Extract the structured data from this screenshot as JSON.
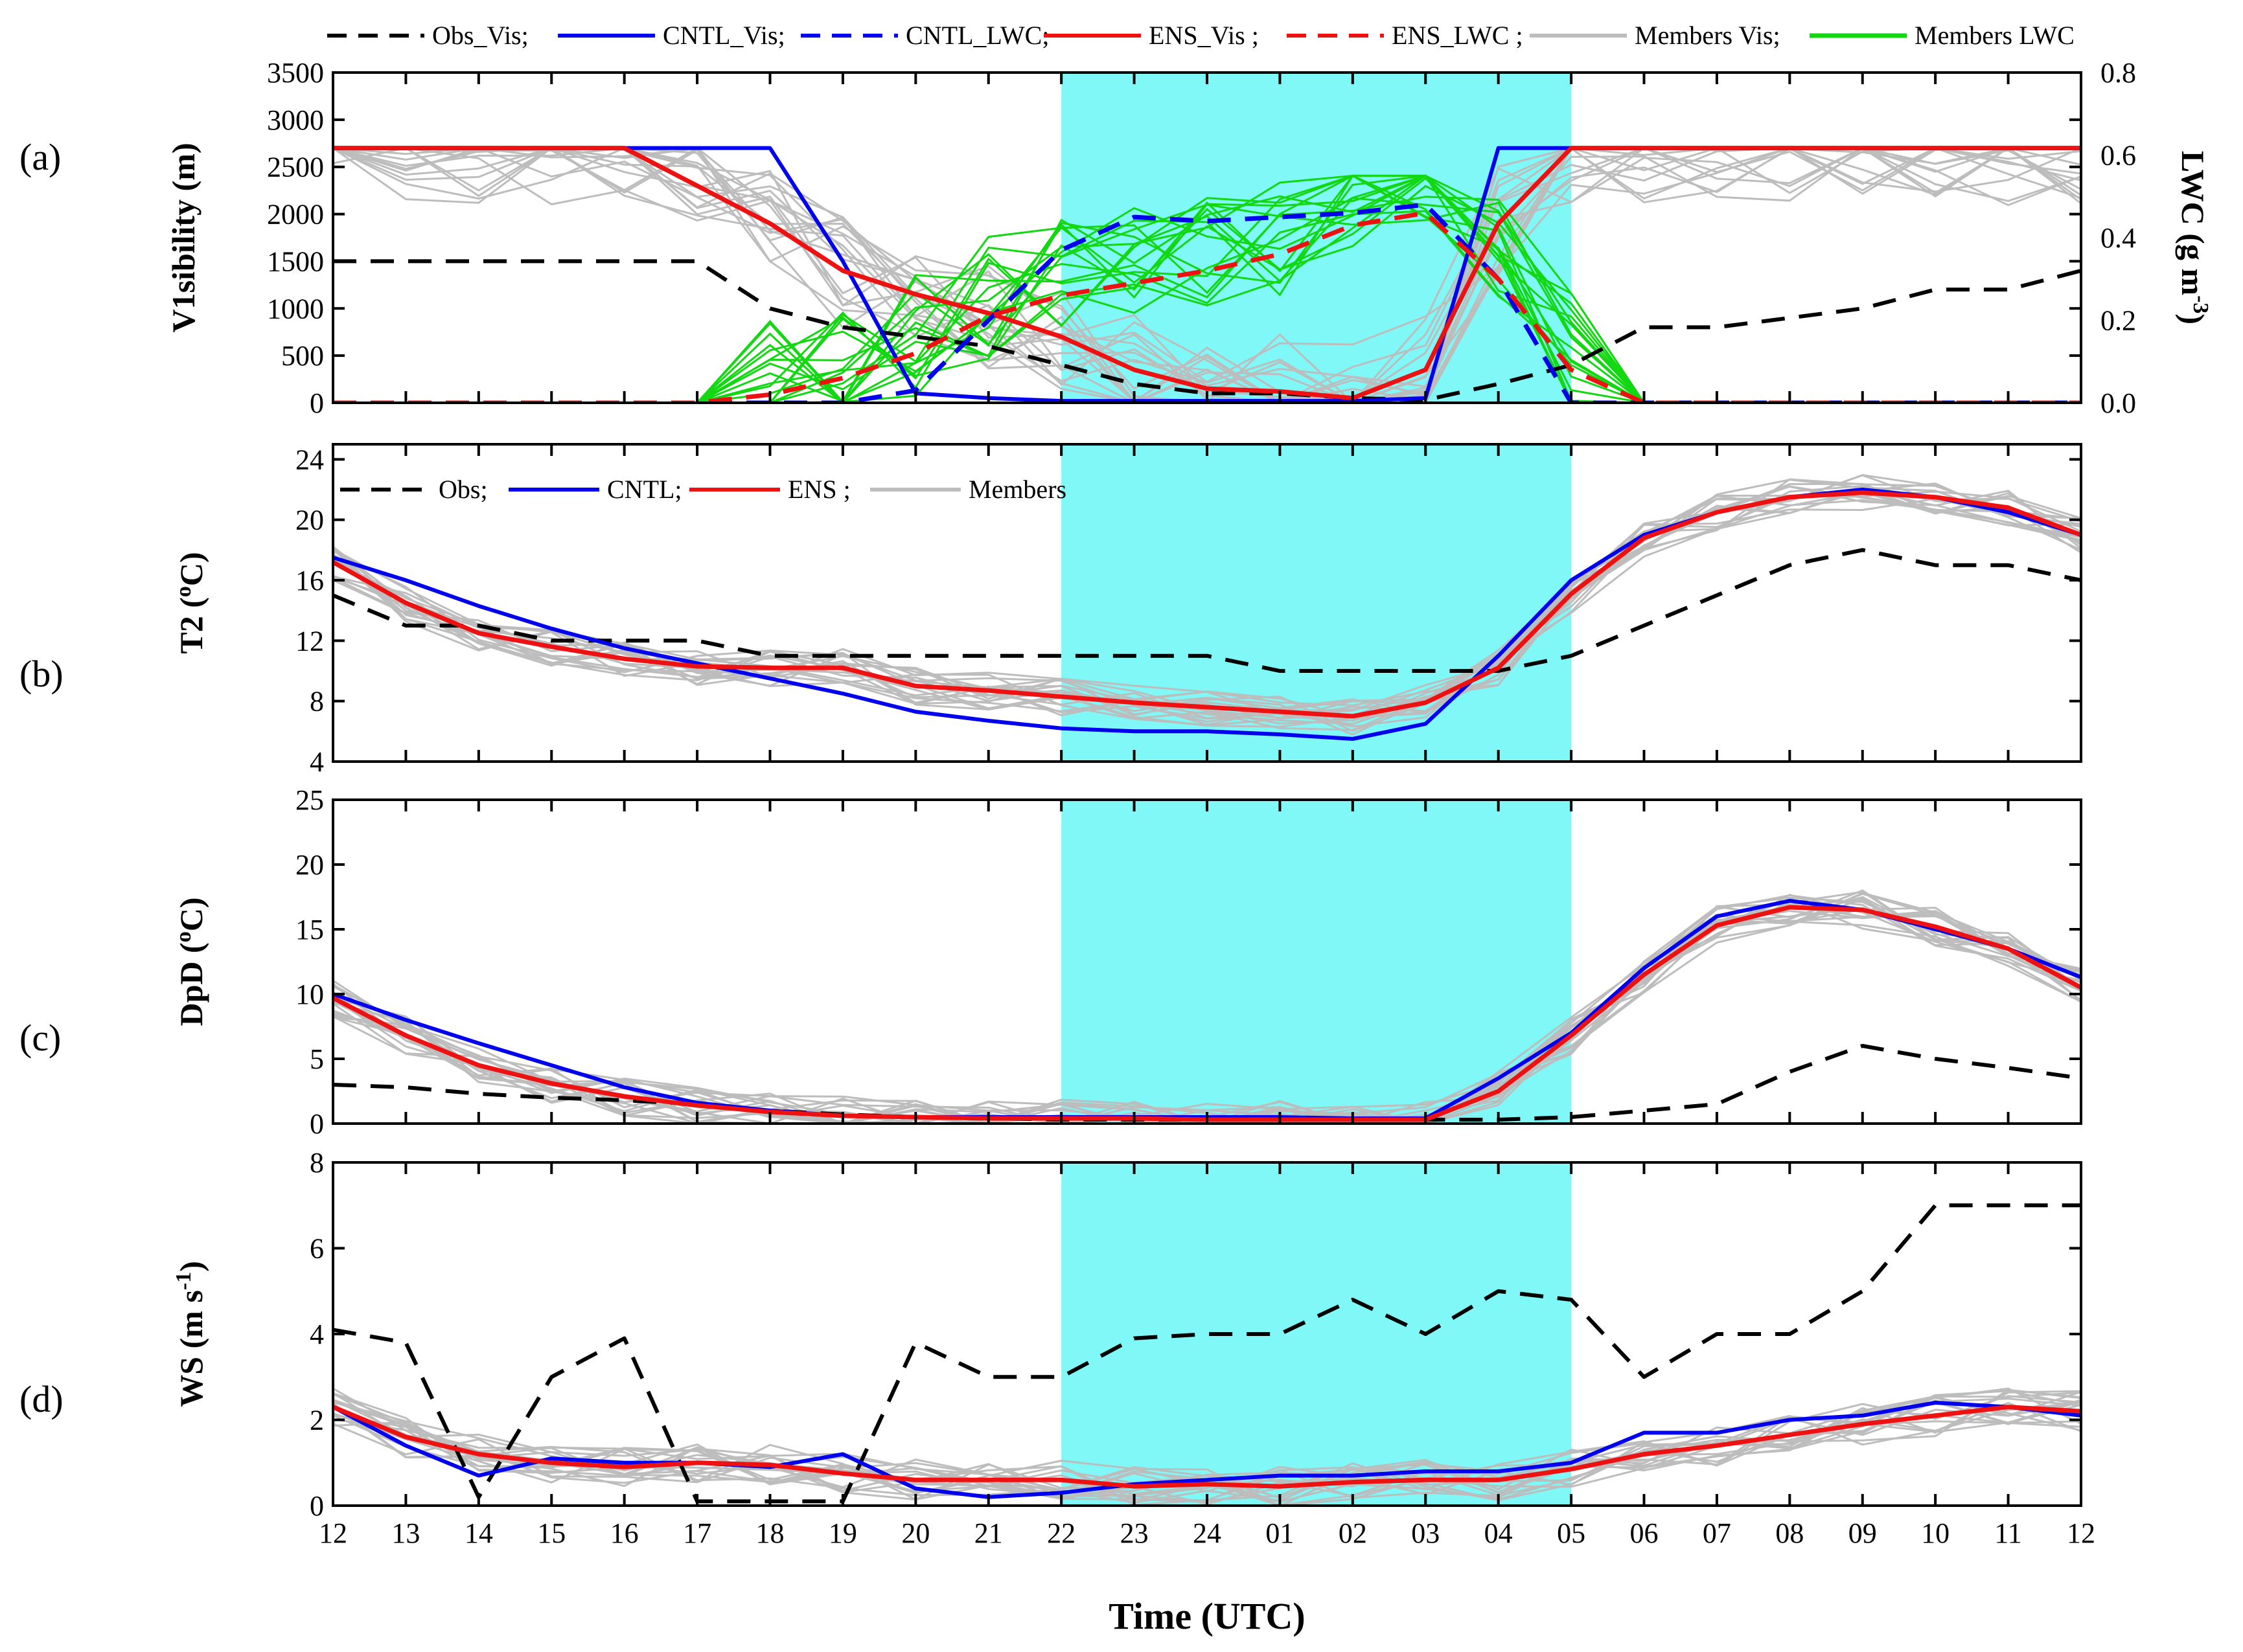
{
  "colors": {
    "highlight": "#80f8f8",
    "obs": "#000000",
    "cntl": "#0000ee",
    "ens": "#ee1111",
    "members": "#bdbdbd",
    "members_lwc": "#12d812"
  },
  "x_axis": {
    "title": "Time (UTC)",
    "ticks": [
      "12",
      "13",
      "14",
      "15",
      "16",
      "17",
      "18",
      "19",
      "20",
      "21",
      "22",
      "23",
      "24",
      "01",
      "02",
      "03",
      "04",
      "05",
      "06",
      "07",
      "08",
      "09",
      "10",
      "11",
      "12"
    ]
  },
  "highlight_band": {
    "x_start": 10,
    "x_end": 17
  },
  "legend_top": {
    "items": [
      {
        "label": "Obs_Vis;",
        "series": "obs",
        "style": "dashed"
      },
      {
        "label": "CNTL_Vis;",
        "series": "cntl",
        "style": "solid"
      },
      {
        "label": "CNTL_LWC;",
        "series": "cntl",
        "style": "dashed"
      },
      {
        "label": "ENS_Vis ;",
        "series": "ens",
        "style": "solid"
      },
      {
        "label": "ENS_LWC ;",
        "series": "ens",
        "style": "dashed"
      },
      {
        "label": "Members Vis;",
        "series": "members",
        "style": "solid"
      },
      {
        "label": "Members LWC",
        "series": "members_lwc",
        "style": "solid"
      }
    ]
  },
  "legend_b": {
    "items": [
      {
        "label": "Obs;",
        "series": "obs",
        "style": "dashed"
      },
      {
        "label": "CNTL;",
        "series": "cntl",
        "style": "solid"
      },
      {
        "label": "ENS ;",
        "series": "ens",
        "style": "solid"
      },
      {
        "label": "Members",
        "series": "members",
        "style": "solid"
      }
    ]
  },
  "chart_data": [
    {
      "type": "line",
      "panel_label": "(a)",
      "ylabel": "V1sibility (m)",
      "ylim": [
        0,
        3500
      ],
      "yticks": [
        "0",
        "500",
        "1000",
        "1500",
        "2000",
        "2500",
        "3000",
        "3500"
      ],
      "y2label": "LWC (g m-3)",
      "y2lim": [
        0,
        0.8
      ],
      "y2ticks": [
        "0.0",
        "0.2",
        "0.4",
        "0.6",
        "0.8"
      ],
      "series": [
        {
          "name": "Obs_Vis",
          "axis": "left",
          "values": [
            1500,
            1500,
            1500,
            1500,
            1500,
            1500,
            1000,
            800,
            700,
            600,
            400,
            200,
            100,
            100,
            50,
            30,
            200,
            400,
            800,
            800,
            900,
            1000,
            1200,
            1200,
            1400
          ]
        },
        {
          "name": "CNTL_Vis",
          "axis": "left",
          "values": [
            2700,
            2700,
            2700,
            2700,
            2700,
            2700,
            2700,
            1500,
            100,
            50,
            20,
            20,
            20,
            20,
            20,
            50,
            2700,
            2700,
            2700,
            2700,
            2700,
            2700,
            2700,
            2700,
            2700
          ]
        },
        {
          "name": "ENS_Vis",
          "axis": "left",
          "values": [
            2700,
            2700,
            2700,
            2700,
            2700,
            2300,
            1900,
            1400,
            1150,
            950,
            700,
            350,
            150,
            120,
            50,
            350,
            1900,
            2700,
            2700,
            2700,
            2700,
            2700,
            2700,
            2700,
            2700
          ]
        },
        {
          "name": "CNTL_LWC",
          "axis": "right",
          "values": [
            0,
            0,
            0,
            0,
            0,
            0,
            0,
            0,
            0.03,
            0.2,
            0.37,
            0.45,
            0.44,
            0.45,
            0.46,
            0.48,
            0.3,
            0,
            0,
            0,
            0,
            0,
            0,
            0,
            0
          ]
        },
        {
          "name": "ENS_LWC",
          "axis": "right",
          "values": [
            0,
            0,
            0,
            0,
            0,
            0,
            0.02,
            0.06,
            0.12,
            0.21,
            0.26,
            0.29,
            0.32,
            0.36,
            0.43,
            0.46,
            0.3,
            0.08,
            0,
            0,
            0,
            0,
            0,
            0,
            0
          ]
        }
      ]
    },
    {
      "type": "line",
      "panel_label": "(b)",
      "ylabel": "T2 (oC)",
      "ylim": [
        4,
        25
      ],
      "yticks": [
        "4",
        "8",
        "12",
        "16",
        "20",
        "24"
      ],
      "series": [
        {
          "name": "Obs",
          "values": [
            15,
            13,
            13,
            12,
            12,
            12,
            11,
            11,
            11,
            11,
            11,
            11,
            11,
            10,
            10,
            10,
            10,
            11,
            13,
            15,
            17,
            18,
            17,
            17,
            16
          ]
        },
        {
          "name": "CNTL",
          "values": [
            17.5,
            16,
            14.3,
            12.8,
            11.5,
            10.5,
            9.5,
            8.5,
            7.3,
            6.7,
            6.2,
            6,
            6,
            5.8,
            5.5,
            6.5,
            11,
            16,
            19,
            20.5,
            21.5,
            22,
            21.5,
            20.5,
            19
          ]
        },
        {
          "name": "ENS",
          "values": [
            17.2,
            14.5,
            12.5,
            11.6,
            10.8,
            10.3,
            10.2,
            10.2,
            9,
            8.7,
            8.3,
            7.9,
            7.6,
            7.3,
            7,
            7.9,
            10.2,
            15.1,
            18.8,
            20.5,
            21.5,
            21.8,
            21.5,
            20.8,
            19
          ]
        }
      ]
    },
    {
      "type": "line",
      "panel_label": "(c)",
      "ylabel": "DpD (oC)",
      "ylim": [
        0,
        25
      ],
      "yticks": [
        "0",
        "5",
        "10",
        "15",
        "20",
        "25"
      ],
      "series": [
        {
          "name": "Obs",
          "values": [
            3,
            2.8,
            2.3,
            2,
            1.8,
            1.5,
            1,
            0.7,
            0.5,
            0.4,
            0.3,
            0.3,
            0.3,
            0.3,
            0.3,
            0.3,
            0.3,
            0.5,
            1,
            1.5,
            4,
            6,
            5,
            4.3,
            3.5
          ]
        },
        {
          "name": "CNTL",
          "values": [
            10,
            8,
            6.2,
            4.5,
            2.8,
            1.6,
            1,
            0.6,
            0.5,
            0.5,
            0.5,
            0.5,
            0.5,
            0.5,
            0.4,
            0.4,
            3.5,
            7,
            12,
            16,
            17.2,
            16.5,
            15,
            13.5,
            11.3
          ]
        },
        {
          "name": "ENS",
          "values": [
            9.7,
            6.8,
            4.5,
            3.1,
            2.1,
            1.4,
            0.9,
            0.6,
            0.5,
            0.4,
            0.4,
            0.4,
            0.3,
            0.3,
            0.3,
            0.3,
            2.5,
            6.8,
            11.5,
            15.3,
            16.7,
            16.5,
            15.2,
            13.5,
            10.5
          ]
        }
      ]
    },
    {
      "type": "line",
      "panel_label": "(d)",
      "ylabel": "WS (m s-1)",
      "ylim": [
        0,
        8
      ],
      "yticks": [
        "0",
        "2",
        "4",
        "6",
        "8"
      ],
      "series": [
        {
          "name": "Obs",
          "values": [
            4.1,
            3.8,
            0.2,
            3,
            3.9,
            0.1,
            0.1,
            0.1,
            3.8,
            3,
            3,
            3.9,
            4,
            4,
            4.8,
            4,
            5,
            4.8,
            3,
            4,
            4,
            5,
            7,
            7,
            7
          ]
        },
        {
          "name": "CNTL",
          "values": [
            2.3,
            1.4,
            0.7,
            1.1,
            1,
            1,
            0.9,
            1.2,
            0.4,
            0.2,
            0.3,
            0.5,
            0.6,
            0.7,
            0.7,
            0.8,
            0.8,
            1,
            1.7,
            1.7,
            2,
            2.1,
            2.4,
            2.3,
            2.1
          ]
        },
        {
          "name": "ENS",
          "values": [
            2.3,
            1.6,
            1.2,
            1,
            0.9,
            1,
            0.95,
            0.75,
            0.6,
            0.6,
            0.6,
            0.45,
            0.5,
            0.45,
            0.55,
            0.6,
            0.6,
            0.85,
            1.2,
            1.4,
            1.65,
            1.9,
            2.1,
            2.3,
            2.2
          ]
        }
      ]
    }
  ]
}
